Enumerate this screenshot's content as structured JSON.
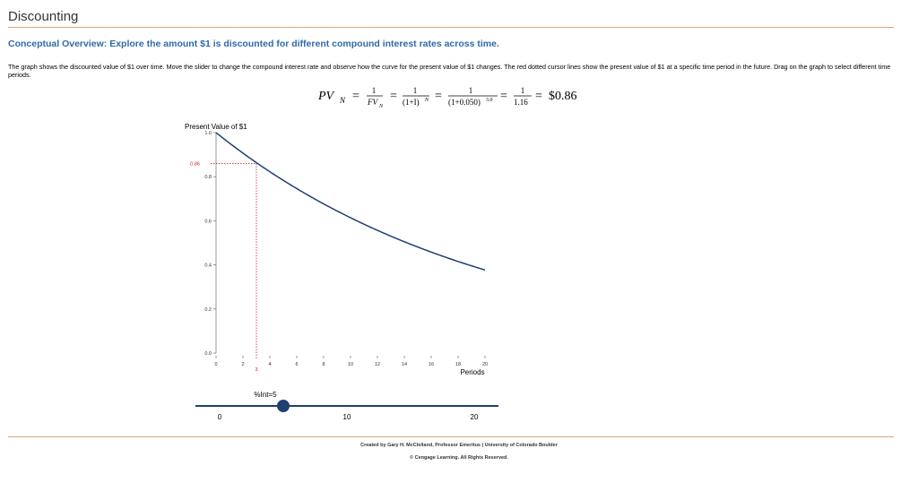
{
  "page": {
    "title": "Discounting",
    "subtitle": "Conceptual Overview: Explore the amount $1 is discounted for different compound interest rates across time.",
    "description": "The graph shows the discounted value of $1 over time. Move the slider to change the compound interest rate and observe how the curve for the present value of $1 changes. The red dotted cursor lines show the present value of $1 at a specific time period in the future. Drag on the graph to select different time periods."
  },
  "formula": {
    "lhs": "PV",
    "lhs_sub": "N",
    "eq": "=",
    "num1": "1",
    "den1": "FV",
    "den1_sub": "N",
    "num2": "1",
    "den2": "(1+I)",
    "den2_sup": "N",
    "num3": "1",
    "den3": "(1+0.050)",
    "den3_sup": "3.0",
    "num4": "1",
    "den4": "1.16",
    "result": "$0.86"
  },
  "chart_data": {
    "type": "line",
    "ylabel": "Present Value of $1",
    "xlabel": "Periods",
    "xlim": [
      0,
      20
    ],
    "ylim": [
      0,
      1.0
    ],
    "x_ticks": [
      "0",
      "2",
      "4",
      "6",
      "8",
      "10",
      "12",
      "14",
      "16",
      "18",
      "20"
    ],
    "y_ticks": [
      "0.0",
      "0.2",
      "0.4",
      "0.6",
      "0.8",
      "1.0"
    ],
    "rate": 0.05,
    "series": [
      {
        "x": [
          0,
          1,
          2,
          3,
          4,
          5,
          6,
          7,
          8,
          9,
          10,
          11,
          12,
          13,
          14,
          15,
          16,
          17,
          18,
          19,
          20
        ],
        "y": [
          1.0,
          0.952,
          0.907,
          0.864,
          0.823,
          0.784,
          0.746,
          0.711,
          0.677,
          0.645,
          0.614,
          0.585,
          0.557,
          0.53,
          0.505,
          0.481,
          0.458,
          0.436,
          0.416,
          0.396,
          0.377
        ],
        "color": "#1f3f73"
      }
    ],
    "cursor": {
      "x": 3,
      "y": 0.86,
      "x_label": "3",
      "y_label": "0.86",
      "color": "#cc2222"
    }
  },
  "slider": {
    "label": "%Int=5",
    "value": 5,
    "min": 0,
    "max": 20,
    "ticks": [
      "0",
      "10",
      "20"
    ],
    "color": "#1f3f73"
  },
  "footer": {
    "line1": "Created by Gary H. McClelland, Professor Emeritus | University of Colorado Boulder",
    "line2": "© Cengage Learning. All Rights Reserved."
  }
}
